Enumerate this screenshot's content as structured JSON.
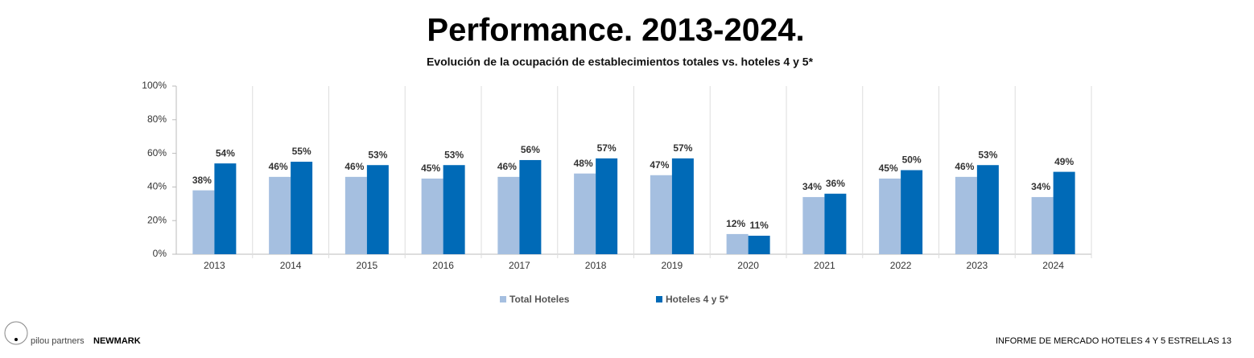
{
  "chart_data": {
    "type": "bar",
    "title": "Performance. 2013-2024.",
    "subtitle": "Evolución de la ocupación de establecimientos totales vs. hoteles 4 y 5*",
    "categories": [
      "2013",
      "2014",
      "2015",
      "2016",
      "2017",
      "2018",
      "2019",
      "2020",
      "2021",
      "2022",
      "2023",
      "2024"
    ],
    "series": [
      {
        "name": "Total Hoteles",
        "color": "#a5bfe0",
        "values": [
          38,
          46,
          46,
          45,
          46,
          48,
          47,
          12,
          34,
          45,
          46,
          34
        ],
        "value_labels": [
          "38%",
          "46%",
          "46%",
          "45%",
          "46%",
          "48%",
          "47%",
          "12%",
          "34%",
          "45%",
          "46%",
          "34%"
        ]
      },
      {
        "name": "Hoteles 4 y 5*",
        "color": "#006ab7",
        "values": [
          54,
          55,
          53,
          53,
          56,
          57,
          57,
          11,
          36,
          50,
          53,
          49
        ],
        "value_labels": [
          "54%",
          "55%",
          "53%",
          "53%",
          "56%",
          "57%",
          "57%",
          "11%",
          "36%",
          "50%",
          "53%",
          "49%"
        ]
      }
    ],
    "ylim": [
      0,
      100
    ],
    "yticks": [
      {
        "value": 0,
        "label": "0%"
      },
      {
        "value": 20,
        "label": "20%"
      },
      {
        "value": 40,
        "label": "40%"
      },
      {
        "value": 60,
        "label": "60%"
      },
      {
        "value": 80,
        "label": "80%"
      },
      {
        "value": 100,
        "label": "100%"
      }
    ],
    "grid": false,
    "legend": "bottom"
  },
  "footer": {
    "brand_left": "pilou partners",
    "brand_right": "NEWMARK",
    "report": "INFORME DE MERCADO HOTELES 4 Y 5 ESTRELLAS 13"
  }
}
